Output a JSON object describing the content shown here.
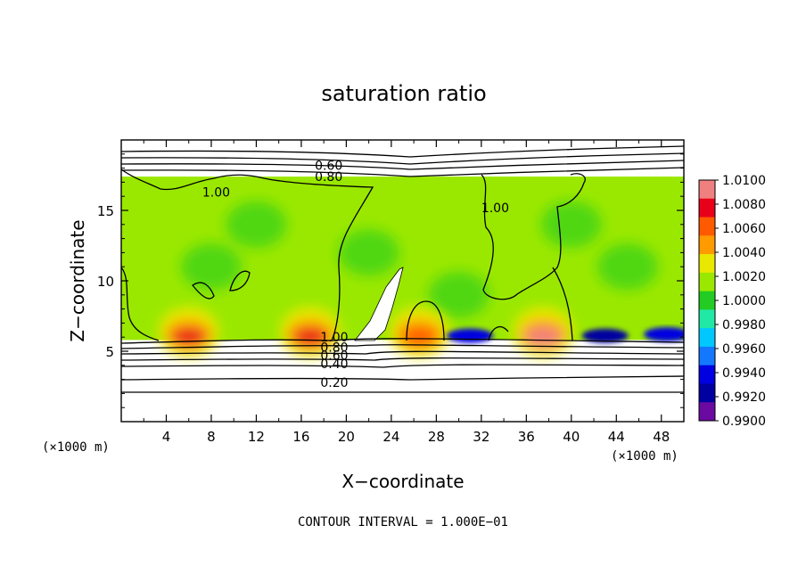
{
  "chart_data": {
    "type": "heatmap",
    "title": "saturation ratio",
    "xlabel": "X−coordinate",
    "ylabel": "Z−coordinate",
    "x_unit_label": "(×1000 m)",
    "y_unit_label": "(×1000 m)",
    "xlim": [
      0,
      50
    ],
    "ylim": [
      0,
      20
    ],
    "x_ticks": [
      4,
      8,
      12,
      16,
      20,
      24,
      28,
      32,
      36,
      40,
      44,
      48
    ],
    "y_ticks": [
      5,
      10,
      15
    ],
    "cloud_layer_z": [
      5.8,
      17.4
    ],
    "colorbar": {
      "ticks": [
        "1.0100",
        "1.0080",
        "1.0060",
        "1.0040",
        "1.0020",
        "1.0000",
        "0.9980",
        "0.9960",
        "0.9940",
        "0.9920",
        "0.9900"
      ],
      "colors": [
        "#f08080",
        "#e8001a",
        "#ff5a00",
        "#ff9a00",
        "#e8e800",
        "#9ae800",
        "#22cc22",
        "#22e8a6",
        "#00c8ff",
        "#1478ff",
        "#0000e0",
        "#0000a0",
        "#6a0aa0"
      ]
    },
    "contour_labels": [
      {
        "text": "0.60",
        "x": 17.2,
        "z": 18.2
      },
      {
        "text": "0.80",
        "x": 17.2,
        "z": 17.4
      },
      {
        "text": "1.00",
        "x": 7.2,
        "z": 16.3
      },
      {
        "text": "1.00",
        "x": 32.0,
        "z": 15.2
      },
      {
        "text": "1.00",
        "x": 17.7,
        "z": 6.0
      },
      {
        "text": "0.80",
        "x": 17.7,
        "z": 5.3
      },
      {
        "text": "0.60",
        "x": 17.7,
        "z": 4.7
      },
      {
        "text": "0.40",
        "x": 17.7,
        "z": 4.1
      },
      {
        "text": "0.20",
        "x": 17.7,
        "z": 2.8
      }
    ],
    "hot_spots": [
      {
        "x": 6.0,
        "z": 6.0,
        "value": 1.007
      },
      {
        "x": 16.8,
        "z": 6.0,
        "value": 1.0075
      },
      {
        "x": 26.5,
        "z": 6.0,
        "value": 1.006
      },
      {
        "x": 37.5,
        "z": 6.0,
        "value": 1.0085
      }
    ],
    "cold_spots": [
      {
        "x": 31.0,
        "z": 6.1,
        "value": 0.9935
      },
      {
        "x": 43.0,
        "z": 6.1,
        "value": 0.993
      },
      {
        "x": 48.5,
        "z": 6.2,
        "value": 0.9935
      }
    ]
  },
  "footer": {
    "contour_interval": "CONTOUR INTERVAL = 1.000E−01"
  }
}
